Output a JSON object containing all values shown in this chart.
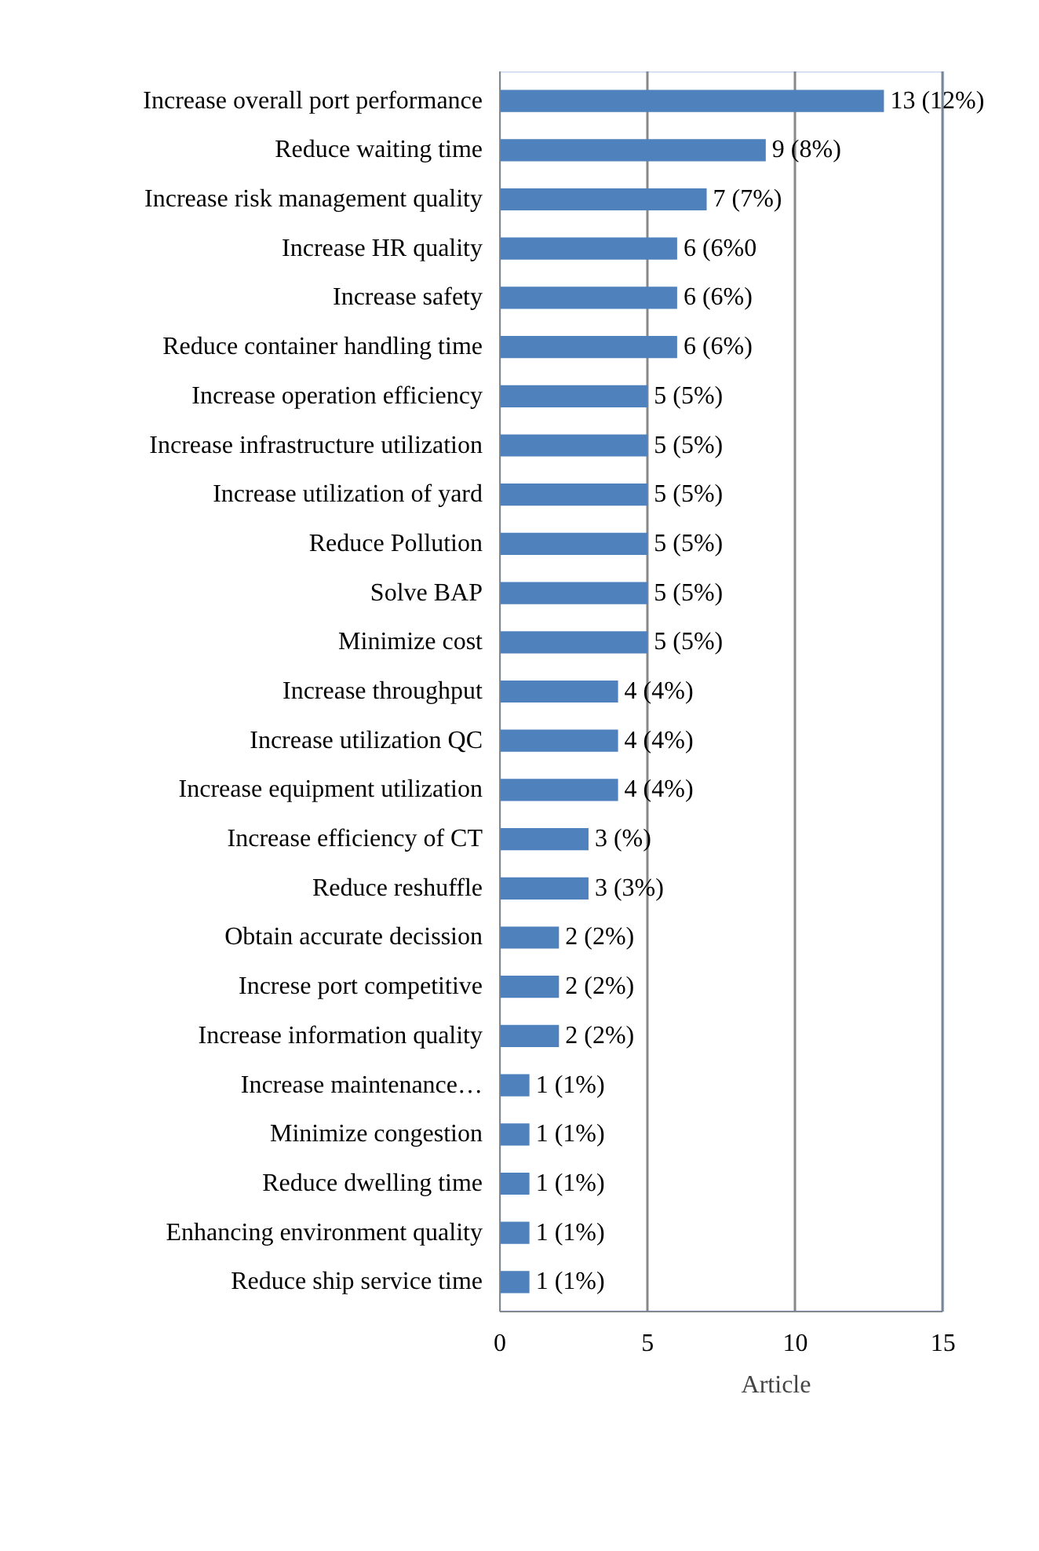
{
  "chart_data": {
    "type": "bar",
    "orientation": "horizontal",
    "categories": [
      "Increase overall port performance",
      "Reduce waiting time",
      "Increase risk management quality",
      "Increase HR quality",
      "Increase safety",
      "Reduce container handling time",
      "Increase operation efficiency",
      "Increase infrastructure utilization",
      "Increase utilization of yard",
      "Reduce Pollution",
      "Solve BAP",
      "Minimize cost",
      "Increase throughput",
      "Increase utilization QC",
      "Increase equipment utilization",
      "Increase efficiency of CT",
      "Reduce reshuffle",
      "Obtain accurate decission",
      "Increse port competitive",
      "Increase information quality",
      "Increase maintenance…",
      "Minimize congestion",
      "Reduce dwelling time",
      "Enhancing environment quality",
      "Reduce ship service time"
    ],
    "series": [
      {
        "name": "Article",
        "color": "#4f81bd",
        "values": [
          13,
          9,
          7,
          6,
          6,
          6,
          5,
          5,
          5,
          5,
          5,
          5,
          4,
          4,
          4,
          3,
          3,
          2,
          2,
          2,
          1,
          1,
          1,
          1,
          1
        ],
        "value_labels": [
          "13 (12%)",
          "9 (8%)",
          "7 (7%)",
          "6 (6%0",
          "6 (6%)",
          "6 (6%)",
          "5 (5%)",
          "5 (5%)",
          "5 (5%)",
          "5 (5%)",
          "5 (5%)",
          "5 (5%)",
          "4 (4%)",
          "4 (4%)",
          "4 (4%)",
          "3 (%)",
          "3 (3%)",
          "2 (2%)",
          "2 (2%)",
          "2 (2%)",
          "1 (1%)",
          "1 (1%)",
          "1 (1%)",
          "1 (1%)",
          "1 (1%)"
        ]
      }
    ],
    "xlim": [
      0,
      15
    ],
    "xticks": [
      0,
      5,
      10,
      15
    ],
    "grid": "x",
    "legend": "bottom"
  }
}
